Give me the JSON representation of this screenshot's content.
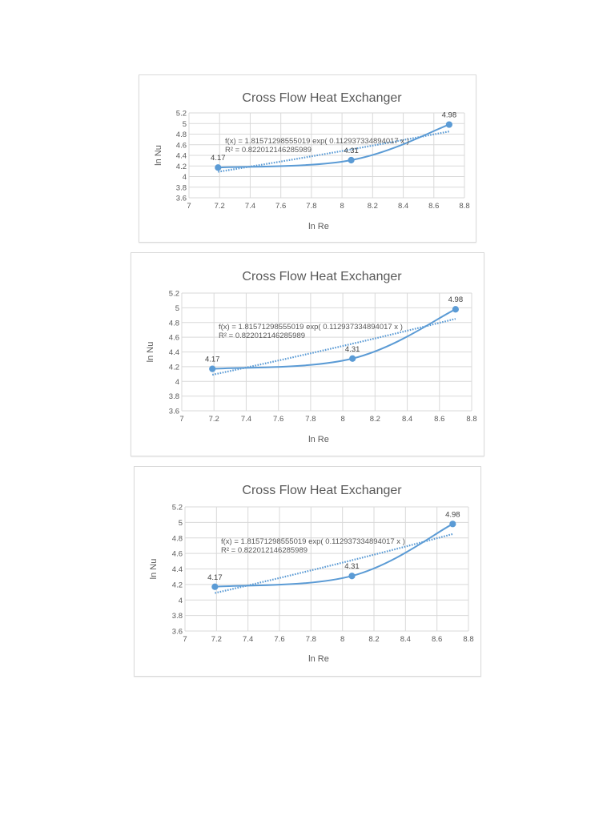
{
  "page": {
    "background": "#ffffff"
  },
  "style": {
    "series_color": "#5b9bd5",
    "grid_color": "#d9d9d9",
    "text_color": "#595959"
  },
  "chart_data": [
    {
      "type": "scatter",
      "title": "Cross Flow Heat Exchanger",
      "xlabel": "ln Re",
      "ylabel": "ln Nu",
      "x": [
        7.19,
        8.06,
        8.7
      ],
      "series": [
        {
          "name": "ln Nu",
          "values": [
            4.17,
            4.31,
            4.98
          ],
          "smoothed_line": true,
          "markers": true
        }
      ],
      "data_labels": [
        "4.17",
        "4.31",
        "4.98"
      ],
      "trendline": {
        "type": "exponential",
        "a": 1.81571298555019,
        "b": 0.112937334894017,
        "equation": "f(x) = 1.81571298555019 exp( 0.112937334894017 x )",
        "r_squared": "R² = 0.822012146285989"
      },
      "xlim": [
        7,
        8.8
      ],
      "ylim": [
        3.6,
        5.2
      ],
      "xticks": [
        "7",
        "7.2",
        "7.4",
        "7.6",
        "7.8",
        "8",
        "8.2",
        "8.4",
        "8.6",
        "8.8"
      ],
      "yticks": [
        "3.6",
        "3.8",
        "4",
        "4.2",
        "4.4",
        "4.6",
        "4.8",
        "5",
        "5.2"
      ],
      "grid": true,
      "legend": "none"
    },
    {
      "type": "scatter",
      "title": "Cross Flow Heat Exchanger",
      "xlabel": "ln Re",
      "ylabel": "ln Nu",
      "x": [
        7.19,
        8.06,
        8.7
      ],
      "series": [
        {
          "name": "ln Nu",
          "values": [
            4.17,
            4.31,
            4.98
          ],
          "smoothed_line": true,
          "markers": true
        }
      ],
      "data_labels": [
        "4.17",
        "4.31",
        "4.98"
      ],
      "trendline": {
        "type": "exponential",
        "a": 1.81571298555019,
        "b": 0.112937334894017,
        "equation": "f(x) = 1.81571298555019 exp( 0.112937334894017 x )",
        "r_squared": "R² = 0.822012146285989"
      },
      "xlim": [
        7,
        8.8
      ],
      "ylim": [
        3.6,
        5.2
      ],
      "xticks": [
        "7",
        "7.2",
        "7.4",
        "7.6",
        "7.8",
        "8",
        "8.2",
        "8.4",
        "8.6",
        "8.8"
      ],
      "yticks": [
        "3.6",
        "3.8",
        "4",
        "4.2",
        "4.4",
        "4.6",
        "4.8",
        "5",
        "5.2"
      ],
      "grid": true,
      "legend": "none"
    },
    {
      "type": "scatter",
      "title": "Cross Flow Heat Exchanger",
      "xlabel": "ln Re",
      "ylabel": "ln Nu",
      "x": [
        7.19,
        8.06,
        8.7
      ],
      "series": [
        {
          "name": "ln Nu",
          "values": [
            4.17,
            4.31,
            4.98
          ],
          "smoothed_line": true,
          "markers": true
        }
      ],
      "data_labels": [
        "4.17",
        "4.31",
        "4.98"
      ],
      "trendline": {
        "type": "exponential",
        "a": 1.81571298555019,
        "b": 0.112937334894017,
        "equation": "f(x) = 1.81571298555019 exp( 0.112937334894017 x )",
        "r_squared": "R² = 0.822012146285989"
      },
      "xlim": [
        7,
        8.8
      ],
      "ylim": [
        3.6,
        5.2
      ],
      "xticks": [
        "7",
        "7.2",
        "7.4",
        "7.6",
        "7.8",
        "8",
        "8.2",
        "8.4",
        "8.6",
        "8.8"
      ],
      "yticks": [
        "3.6",
        "3.8",
        "4",
        "4.2",
        "4.4",
        "4.6",
        "4.8",
        "5",
        "5.2"
      ],
      "grid": true,
      "legend": "none"
    }
  ]
}
